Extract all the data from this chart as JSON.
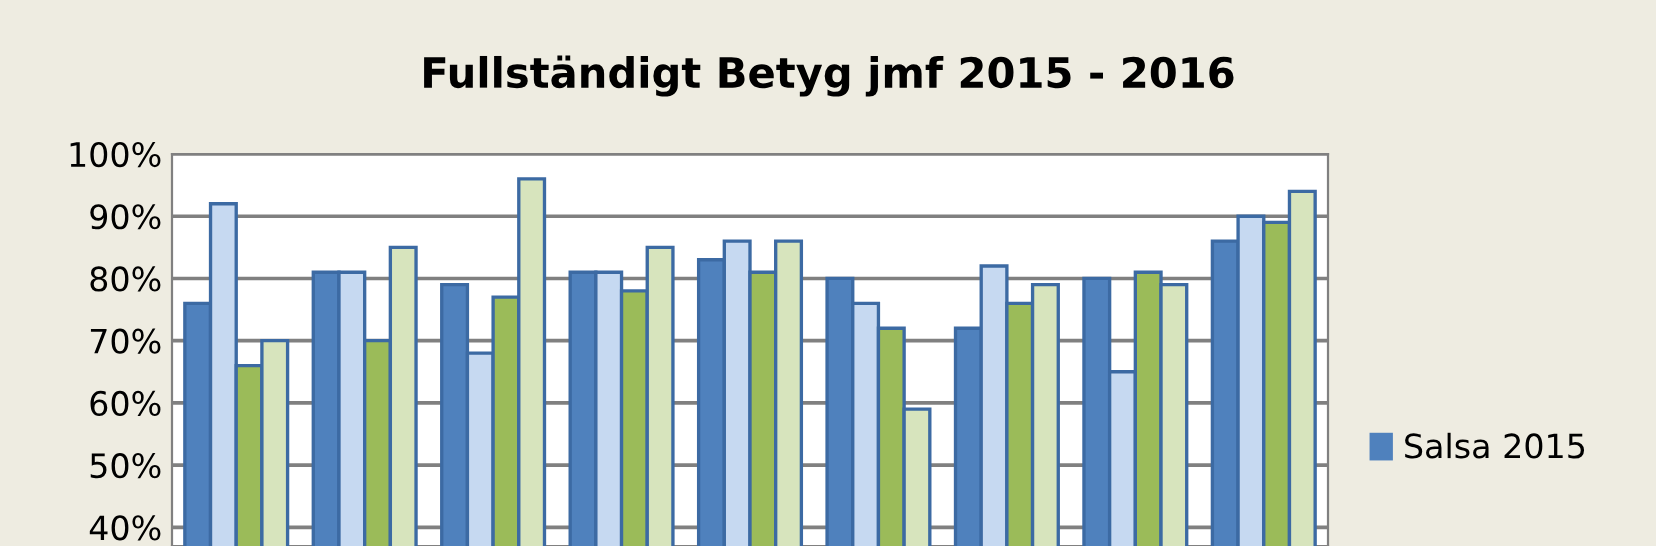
{
  "chart_data": {
    "type": "bar",
    "title": "Fullständigt Betyg jmf 2015 - 2016",
    "categories": [
      null,
      null,
      null,
      null,
      null,
      null,
      null,
      null,
      null
    ],
    "series": [
      {
        "name": "Salsa 2015",
        "color": "#4f81bd",
        "values": [
          76,
          81,
          79,
          81,
          83,
          80,
          72,
          80,
          86
        ]
      },
      {
        "color": "#c6d9f1",
        "values": [
          92,
          81,
          68,
          81,
          86,
          76,
          82,
          65,
          90
        ]
      },
      {
        "color": "#9bbb59",
        "values": [
          66,
          70,
          77,
          78,
          81,
          72,
          76,
          81,
          89
        ]
      },
      {
        "color": "#d7e4bd",
        "values": [
          70,
          85,
          96,
          85,
          86,
          59,
          79,
          79,
          94
        ]
      }
    ],
    "ylim": [
      37,
      100
    ],
    "yticks": [
      {
        "value": 40,
        "label": "40%"
      },
      {
        "value": 50,
        "label": "50%"
      },
      {
        "value": 60,
        "label": "60%"
      },
      {
        "value": 70,
        "label": "70%"
      },
      {
        "value": 80,
        "label": "80%"
      },
      {
        "value": 90,
        "label": "90%"
      },
      {
        "value": 100,
        "label": "100%"
      }
    ],
    "grid": "y",
    "legend": "right"
  }
}
